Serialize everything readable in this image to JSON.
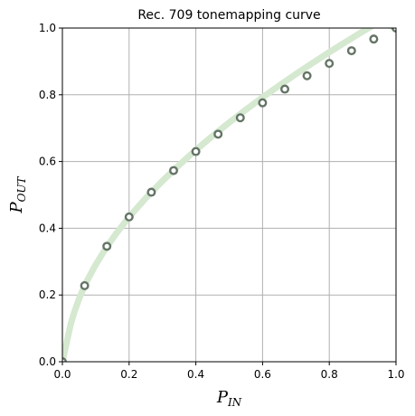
{
  "chart_data": {
    "type": "line",
    "title": "Rec. 709 tonemapping curve",
    "xlabel": {
      "main": "P",
      "sub": "IN"
    },
    "ylabel": {
      "main": "P",
      "sub": "OUT"
    },
    "xlim": [
      0.0,
      1.0
    ],
    "ylim": [
      0.0,
      1.0
    ],
    "xticks": [
      0.0,
      0.2,
      0.4,
      0.6,
      0.8,
      1.0
    ],
    "yticks": [
      0.0,
      0.2,
      0.4,
      0.6,
      0.8,
      1.0
    ],
    "xtick_labels": [
      "0.0",
      "0.2",
      "0.4",
      "0.6",
      "0.8",
      "1.0"
    ],
    "ytick_labels": [
      "0.0",
      "0.2",
      "0.4",
      "0.6",
      "0.8",
      "1.0"
    ],
    "grid": true,
    "line_color": "#d5e8d0",
    "marker_edge_color": "#647466",
    "marker_face_color": "#ffffff",
    "curve_x": [
      0.0,
      0.005,
      0.01,
      0.015,
      0.018,
      0.025,
      0.035,
      0.05,
      0.07,
      0.1,
      0.13,
      0.16,
      0.2,
      0.25,
      0.3,
      0.35,
      0.4,
      0.45,
      0.5,
      0.55,
      0.6,
      0.65,
      0.7,
      0.75,
      0.8,
      0.85,
      0.9,
      0.95,
      1.0
    ],
    "curve_y": [
      0.0,
      0.0225,
      0.045,
      0.0675,
      0.081,
      0.1129,
      0.1463,
      0.1891,
      0.2353,
      0.2911,
      0.3393,
      0.3826,
      0.4338,
      0.4903,
      0.5418,
      0.5896,
      0.6344,
      0.6766,
      0.7168,
      0.7552,
      0.7921,
      0.8276,
      0.862,
      0.8953,
      0.9275,
      0.9588,
      0.9894,
      1.0191,
      1.0
    ],
    "series": [
      {
        "x": [
          0.0,
          0.0667,
          0.1333,
          0.2,
          0.2667,
          0.3333,
          0.4,
          0.4667,
          0.5333,
          0.6,
          0.6667,
          0.7333,
          0.8,
          0.8667,
          0.9333,
          1.0
        ],
        "y": [
          0.0,
          0.228,
          0.346,
          0.434,
          0.508,
          0.573,
          0.63,
          0.682,
          0.731,
          0.776,
          0.817,
          0.857,
          0.894,
          0.932,
          0.967,
          1.0
        ]
      }
    ]
  }
}
